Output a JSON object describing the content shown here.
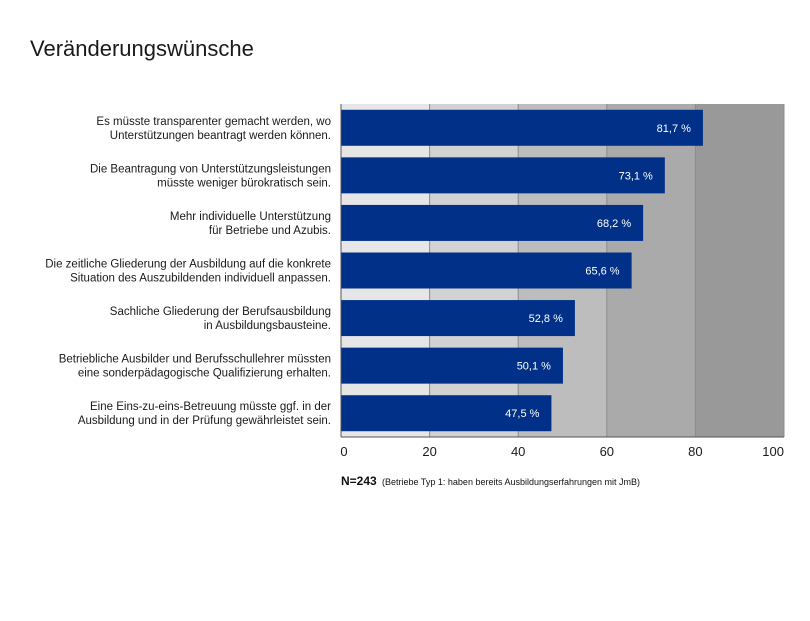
{
  "title": "Veränderungswünsche",
  "note": {
    "n": "N=243",
    "detail": "(Betriebe Typ 1: haben bereits Ausbildungserfahrungen mit JmB)"
  },
  "colors": {
    "bar": "#003087",
    "bar_label": "#ffffff",
    "band_0_20": "#e6e6e6",
    "band_20_40": "#d2d2d2",
    "band_40_60": "#bdbdbd",
    "band_60_80": "#aaaaaa",
    "band_80_100": "#999999",
    "gridline": "#8c8c8c"
  },
  "chart_data": {
    "type": "bar",
    "orientation": "horizontal",
    "categories": [
      [
        "Es müsste transparenter gemacht werden, wo",
        "Unterstützungen beantragt werden können."
      ],
      [
        "Die Beantragung von Unterstützungsleistungen",
        "müsste weniger bürokratisch sein."
      ],
      [
        "Mehr individuelle Unterstützung",
        "für Betriebe und Azubis."
      ],
      [
        "Die zeitliche Gliederung der Ausbildung auf die konkrete",
        "Situation des Auszubildenden individuell anpassen."
      ],
      [
        "Sachliche Gliederung der Berufsausbildung",
        "in Ausbildungsbausteine."
      ],
      [
        "Betriebliche Ausbilder und Berufsschullehrer müssten",
        "eine sonderpädagogische Qualifizierung erhalten."
      ],
      [
        "Eine Eins-zu-eins-Betreuung müsste ggf. in der",
        "Ausbildung und in der Prüfung gewährleistet sein."
      ]
    ],
    "values": [
      81.7,
      73.1,
      68.2,
      65.6,
      52.8,
      50.1,
      47.5
    ],
    "value_labels": [
      "81,7 %",
      "73,1 %",
      "68,2 %",
      "65,6 %",
      "52,8 %",
      "50,1 %",
      "47,5 %"
    ],
    "xlim": [
      0,
      100
    ],
    "xticks": [
      0,
      20,
      40,
      60,
      80,
      100
    ],
    "background_bands": [
      [
        0,
        20
      ],
      [
        20,
        40
      ],
      [
        40,
        60
      ],
      [
        60,
        80
      ],
      [
        80,
        100
      ]
    ],
    "grid": true,
    "legend": "none"
  }
}
